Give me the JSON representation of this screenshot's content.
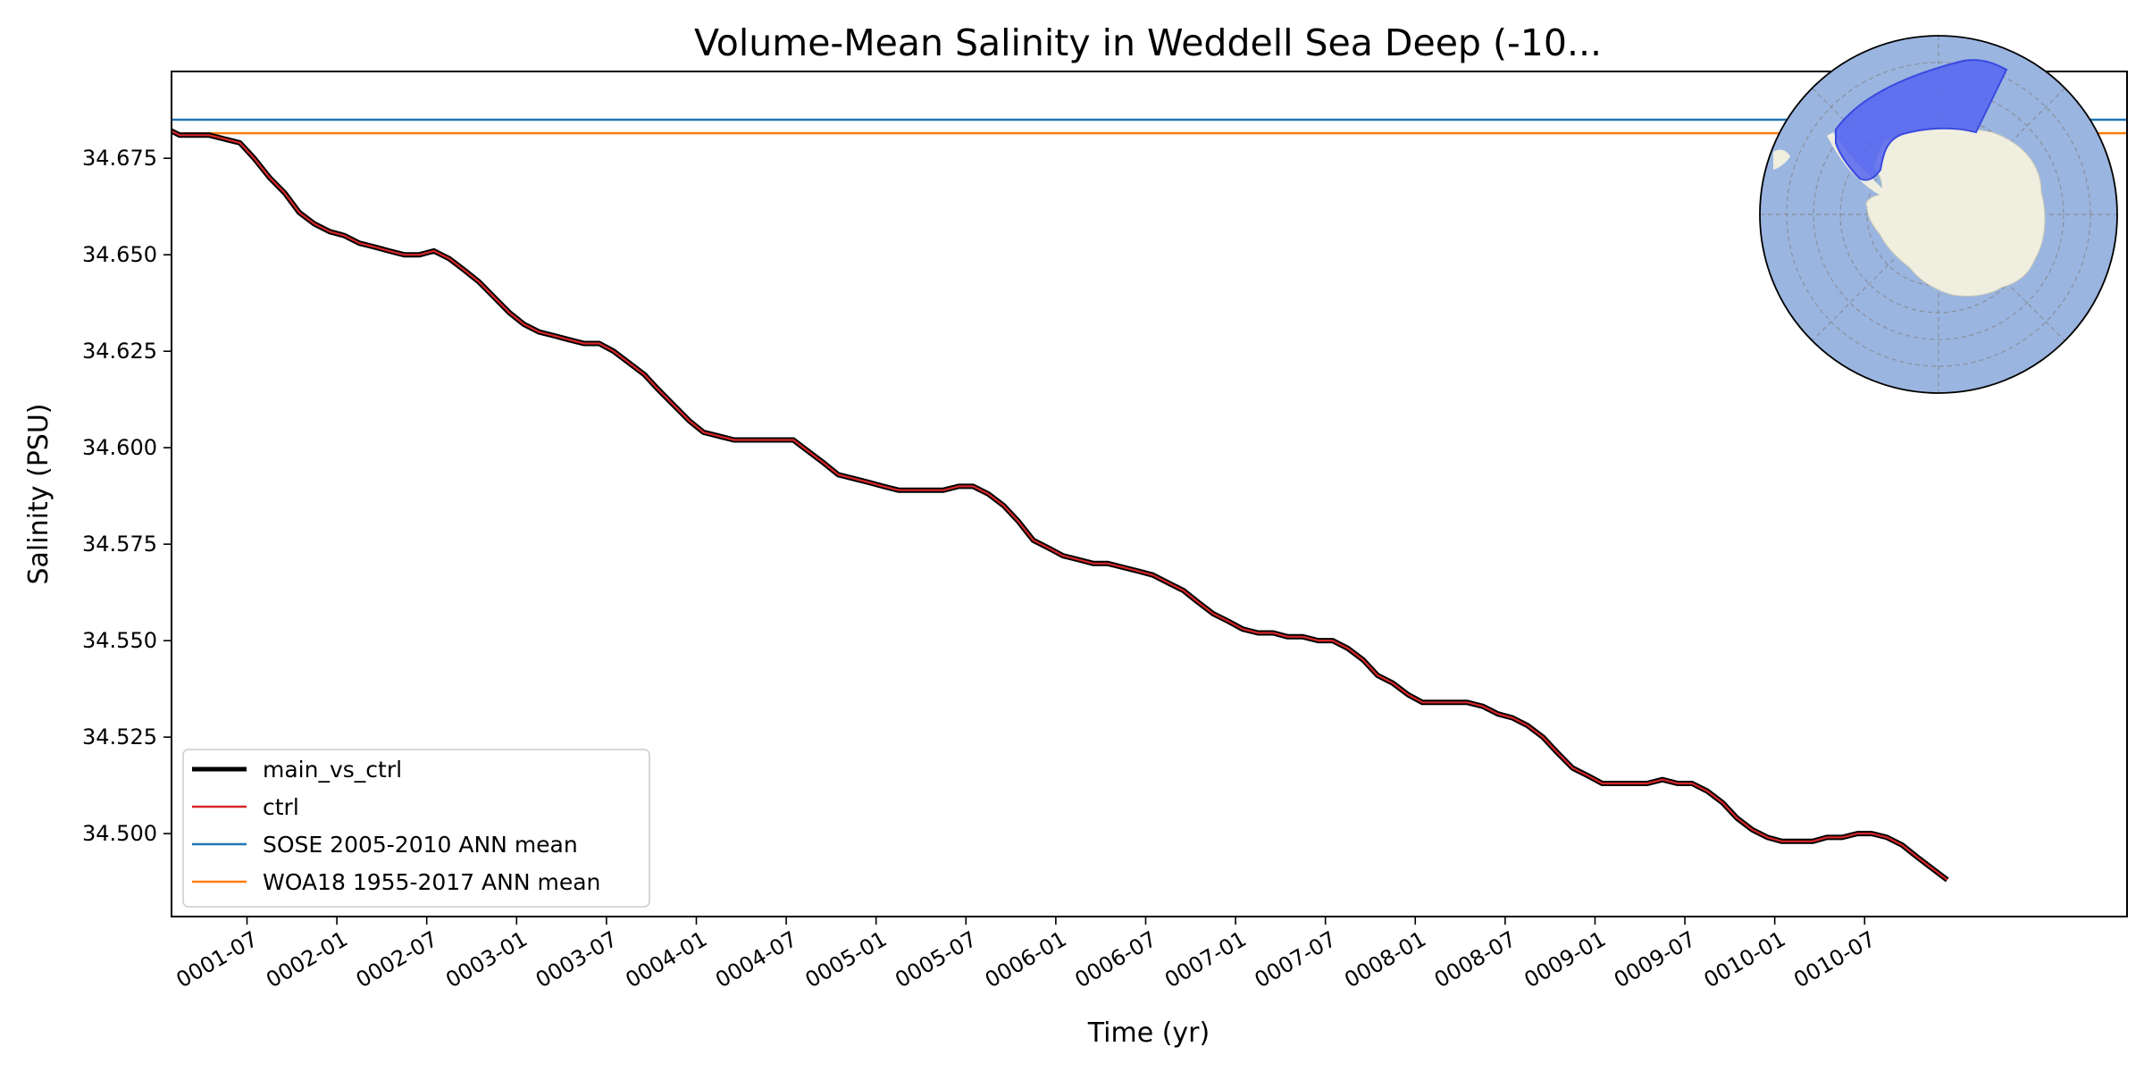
{
  "chart_data": {
    "type": "line",
    "title": "Volume-Mean Salinity in Weddell Sea Deep (-10...",
    "xlabel": "Time (yr)",
    "ylabel": "Salinity (PSU)",
    "xlim": [
      0.08,
      10.96
    ],
    "ylim": [
      34.4785,
      34.6975
    ],
    "x_ticks": [
      {
        "value": 0.5,
        "label": "0001-07"
      },
      {
        "value": 1.0,
        "label": "0002-01"
      },
      {
        "value": 1.5,
        "label": "0002-07"
      },
      {
        "value": 2.0,
        "label": "0003-01"
      },
      {
        "value": 2.5,
        "label": "0003-07"
      },
      {
        "value": 3.0,
        "label": "0004-01"
      },
      {
        "value": 3.5,
        "label": "0004-07"
      },
      {
        "value": 4.0,
        "label": "0005-01"
      },
      {
        "value": 4.5,
        "label": "0005-07"
      },
      {
        "value": 5.0,
        "label": "0006-01"
      },
      {
        "value": 5.5,
        "label": "0006-07"
      },
      {
        "value": 6.0,
        "label": "0007-01"
      },
      {
        "value": 6.5,
        "label": "0007-07"
      },
      {
        "value": 7.0,
        "label": "0008-01"
      },
      {
        "value": 7.5,
        "label": "0008-07"
      },
      {
        "value": 8.0,
        "label": "0009-01"
      },
      {
        "value": 8.5,
        "label": "0009-07"
      },
      {
        "value": 9.0,
        "label": "0010-01"
      },
      {
        "value": 9.5,
        "label": "0010-07"
      }
    ],
    "y_ticks": [
      {
        "value": 34.5,
        "label": "34.500"
      },
      {
        "value": 34.525,
        "label": "34.525"
      },
      {
        "value": 34.55,
        "label": "34.550"
      },
      {
        "value": 34.575,
        "label": "34.575"
      },
      {
        "value": 34.6,
        "label": "34.600"
      },
      {
        "value": 34.625,
        "label": "34.625"
      },
      {
        "value": 34.65,
        "label": "34.650"
      },
      {
        "value": 34.675,
        "label": "34.675"
      }
    ],
    "series": [
      {
        "name": "main_vs_ctrl",
        "color": "#000000",
        "x": [
          0.04,
          0.125,
          0.21,
          0.29,
          0.375,
          0.46,
          0.54,
          0.625,
          0.71,
          0.79,
          0.875,
          0.96,
          1.04,
          1.125,
          1.21,
          1.29,
          1.375,
          1.46,
          1.54,
          1.625,
          1.71,
          1.79,
          1.875,
          1.96,
          2.04,
          2.125,
          2.21,
          2.29,
          2.375,
          2.46,
          2.54,
          2.625,
          2.71,
          2.79,
          2.875,
          2.96,
          3.04,
          3.125,
          3.21,
          3.29,
          3.375,
          3.46,
          3.54,
          3.625,
          3.71,
          3.79,
          3.875,
          3.96,
          4.04,
          4.125,
          4.21,
          4.29,
          4.375,
          4.46,
          4.54,
          4.625,
          4.71,
          4.79,
          4.875,
          4.96,
          5.04,
          5.125,
          5.21,
          5.29,
          5.375,
          5.46,
          5.54,
          5.625,
          5.71,
          5.79,
          5.875,
          5.96,
          6.04,
          6.125,
          6.21,
          6.29,
          6.375,
          6.46,
          6.54,
          6.625,
          6.71,
          6.79,
          6.875,
          6.96,
          7.04,
          7.125,
          7.21,
          7.29,
          7.375,
          7.46,
          7.54,
          7.625,
          7.71,
          7.79,
          7.875,
          7.96,
          8.04,
          8.125,
          8.21,
          8.29,
          8.375,
          8.46,
          8.54,
          8.625,
          8.71,
          8.79,
          8.875,
          8.96,
          9.04,
          9.125,
          9.21,
          9.29,
          9.375,
          9.46,
          9.54,
          9.625,
          9.71,
          9.79,
          9.875,
          9.96
        ],
        "values": [
          34.683,
          34.681,
          34.681,
          34.681,
          34.68,
          34.679,
          34.675,
          34.67,
          34.666,
          34.661,
          34.658,
          34.656,
          34.655,
          34.653,
          34.652,
          34.651,
          34.65,
          34.65,
          34.651,
          34.649,
          34.646,
          34.643,
          34.639,
          34.635,
          34.632,
          34.63,
          34.629,
          34.628,
          34.627,
          34.627,
          34.625,
          34.622,
          34.619,
          34.615,
          34.611,
          34.607,
          34.604,
          34.603,
          34.602,
          34.602,
          34.602,
          34.602,
          34.602,
          34.599,
          34.596,
          34.593,
          34.592,
          34.591,
          34.59,
          34.589,
          34.589,
          34.589,
          34.589,
          34.59,
          34.59,
          34.588,
          34.585,
          34.581,
          34.576,
          34.574,
          34.572,
          34.571,
          34.57,
          34.57,
          34.569,
          34.568,
          34.567,
          34.565,
          34.563,
          34.56,
          34.557,
          34.555,
          34.553,
          34.552,
          34.552,
          34.551,
          34.551,
          34.55,
          34.55,
          34.548,
          34.545,
          34.541,
          34.539,
          34.536,
          34.534,
          34.534,
          34.534,
          34.534,
          34.533,
          34.531,
          34.53,
          34.528,
          34.525,
          34.521,
          34.517,
          34.515,
          34.513,
          34.513,
          34.513,
          34.513,
          34.514,
          34.513,
          34.513,
          34.511,
          34.508,
          34.504,
          34.501,
          34.499,
          34.498,
          34.498,
          34.498,
          34.499,
          34.499,
          34.5,
          34.5,
          34.499,
          34.497,
          34.494,
          34.491,
          34.488
        ]
      },
      {
        "name": "ctrl",
        "color": "#d62728"
      },
      {
        "name": "SOSE 2005-2010 ANN mean",
        "color": "#1f77b4",
        "constant": 34.685
      },
      {
        "name": "WOA18 1955-2017 ANN mean",
        "color": "#ff7f0e",
        "constant": 34.6815
      }
    ],
    "legend_position": "lower-left",
    "inset_map": {
      "type": "south-polar-stereographic",
      "region": "Weddell Sea Deep",
      "ocean_color": "#9ab5e0",
      "land_color": "#efeedf",
      "region_color": "#5565f0"
    }
  }
}
